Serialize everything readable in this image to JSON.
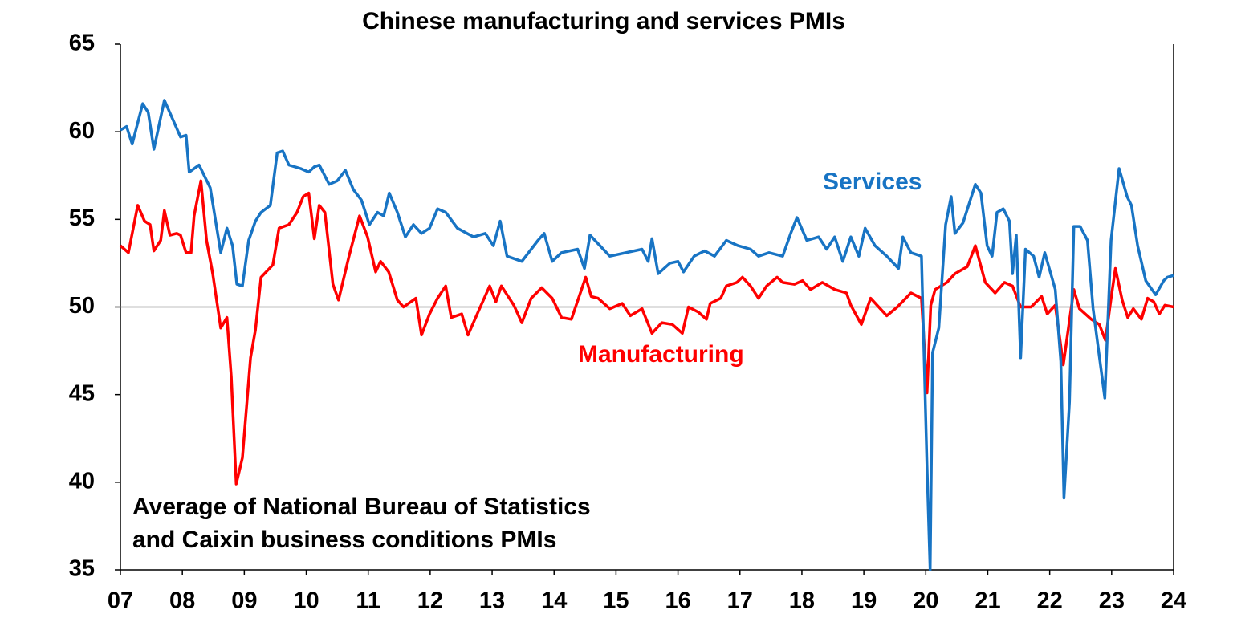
{
  "chart_data": {
    "type": "line",
    "title": "Chinese manufacturing and services PMIs",
    "annotation": [
      "Average of National Bureau of Statistics",
      "and Caixin business conditions PMIs"
    ],
    "xlim": [
      2007,
      2024
    ],
    "xticks": [
      {
        "value": 2007,
        "label": "07"
      },
      {
        "value": 2008,
        "label": "08"
      },
      {
        "value": 2009,
        "label": "09"
      },
      {
        "value": 2010,
        "label": "10"
      },
      {
        "value": 2011,
        "label": "11"
      },
      {
        "value": 2012,
        "label": "12"
      },
      {
        "value": 2013,
        "label": "13"
      },
      {
        "value": 2014,
        "label": "14"
      },
      {
        "value": 2015,
        "label": "15"
      },
      {
        "value": 2016,
        "label": "16"
      },
      {
        "value": 2017,
        "label": "17"
      },
      {
        "value": 2018,
        "label": "18"
      },
      {
        "value": 2019,
        "label": "19"
      },
      {
        "value": 2020,
        "label": "20"
      },
      {
        "value": 2021,
        "label": "21"
      },
      {
        "value": 2022,
        "label": "22"
      },
      {
        "value": 2023,
        "label": "23"
      },
      {
        "value": 2024,
        "label": "24"
      }
    ],
    "ylim": [
      35,
      65
    ],
    "yticks": [
      35,
      40,
      45,
      50,
      55,
      60,
      65
    ],
    "reference_line": 50,
    "series": [
      {
        "name": "Services",
        "color": "#1874c4",
        "x": [
          2007.0,
          2007.1,
          2007.19,
          2007.36,
          2007.45,
          2007.54,
          2007.71,
          2007.97,
          2008.06,
          2008.11,
          2008.27,
          2008.45,
          2008.62,
          2008.72,
          2008.81,
          2008.88,
          2008.97,
          2009.07,
          2009.18,
          2009.27,
          2009.42,
          2009.53,
          2009.62,
          2009.72,
          2009.91,
          2010.04,
          2010.13,
          2010.21,
          2010.37,
          2010.5,
          2010.63,
          2010.76,
          2010.89,
          2011.02,
          2011.15,
          2011.25,
          2011.34,
          2011.47,
          2011.6,
          2011.73,
          2011.86,
          2011.99,
          2012.12,
          2012.25,
          2012.44,
          2012.7,
          2012.89,
          2013.02,
          2013.13,
          2013.24,
          2013.48,
          2013.74,
          2013.84,
          2013.97,
          2014.12,
          2014.38,
          2014.49,
          2014.58,
          2014.9,
          2015.16,
          2015.42,
          2015.52,
          2015.58,
          2015.68,
          2015.87,
          2016.0,
          2016.09,
          2016.26,
          2016.43,
          2016.59,
          2016.78,
          2016.97,
          2017.17,
          2017.3,
          2017.47,
          2017.69,
          2017.82,
          2017.92,
          2018.08,
          2018.27,
          2018.4,
          2018.53,
          2018.66,
          2018.79,
          2018.92,
          2019.02,
          2019.18,
          2019.37,
          2019.56,
          2019.63,
          2019.76,
          2019.93,
          2020.02,
          2020.07,
          2020.11,
          2020.21,
          2020.32,
          2020.41,
          2020.47,
          2020.6,
          2020.8,
          2020.89,
          2020.99,
          2021.07,
          2021.15,
          2021.25,
          2021.35,
          2021.4,
          2021.46,
          2021.53,
          2021.61,
          2021.74,
          2021.83,
          2021.92,
          2022.09,
          2022.18,
          2022.23,
          2022.32,
          2022.39,
          2022.49,
          2022.61,
          2022.7,
          2022.89,
          2022.99,
          2023.12,
          2023.25,
          2023.32,
          2023.42,
          2023.55,
          2023.71,
          2023.84,
          2023.9,
          2024.0
        ],
        "values": [
          60.1,
          60.3,
          59.3,
          61.6,
          61.1,
          59.0,
          61.8,
          59.7,
          59.8,
          57.7,
          58.1,
          56.8,
          53.1,
          54.5,
          53.5,
          51.3,
          51.2,
          53.8,
          54.9,
          55.4,
          55.8,
          58.8,
          58.9,
          58.1,
          57.9,
          57.7,
          58.0,
          58.1,
          57.0,
          57.2,
          57.8,
          56.7,
          56.1,
          54.7,
          55.4,
          55.2,
          56.5,
          55.4,
          54.0,
          54.7,
          54.2,
          54.5,
          55.6,
          55.4,
          54.5,
          54.0,
          54.2,
          53.5,
          54.9,
          52.9,
          52.6,
          53.8,
          54.2,
          52.6,
          53.1,
          53.3,
          52.2,
          54.1,
          52.9,
          53.1,
          53.3,
          52.6,
          53.9,
          51.9,
          52.5,
          52.6,
          52.0,
          52.9,
          53.2,
          52.9,
          53.8,
          53.5,
          53.3,
          52.9,
          53.1,
          52.9,
          54.2,
          55.1,
          53.8,
          54.0,
          53.3,
          54.0,
          52.6,
          54.0,
          52.9,
          54.5,
          53.5,
          52.9,
          52.2,
          54.0,
          53.1,
          52.9,
          40.9,
          35.0,
          47.4,
          48.8,
          54.7,
          56.3,
          54.2,
          54.8,
          57.0,
          56.5,
          53.5,
          52.9,
          55.4,
          55.6,
          54.9,
          51.9,
          54.1,
          47.1,
          53.3,
          52.9,
          51.7,
          53.1,
          51.0,
          46.9,
          39.1,
          44.6,
          54.6,
          54.6,
          53.8,
          49.9,
          44.8,
          53.8,
          57.9,
          56.3,
          55.8,
          53.5,
          51.5,
          50.7,
          51.5,
          51.7,
          51.8
        ]
      },
      {
        "name": "Manufacturing",
        "color": "#ff0000",
        "x": [
          2007.0,
          2007.13,
          2007.28,
          2007.39,
          2007.48,
          2007.54,
          2007.65,
          2007.71,
          2007.8,
          2007.91,
          2007.97,
          2008.06,
          2008.14,
          2008.19,
          2008.3,
          2008.39,
          2008.49,
          2008.62,
          2008.72,
          2008.79,
          2008.87,
          2008.97,
          2009.1,
          2009.18,
          2009.27,
          2009.46,
          2009.56,
          2009.72,
          2009.85,
          2009.95,
          2010.04,
          2010.13,
          2010.21,
          2010.3,
          2010.43,
          2010.52,
          2010.69,
          2010.86,
          2010.99,
          2011.12,
          2011.2,
          2011.33,
          2011.47,
          2011.57,
          2011.77,
          2011.86,
          2011.99,
          2012.12,
          2012.25,
          2012.34,
          2012.51,
          2012.61,
          2012.76,
          2012.96,
          2013.06,
          2013.15,
          2013.35,
          2013.48,
          2013.63,
          2013.8,
          2013.97,
          2014.12,
          2014.28,
          2014.51,
          2014.6,
          2014.71,
          2014.9,
          2015.1,
          2015.23,
          2015.42,
          2015.58,
          2015.74,
          2015.91,
          2016.07,
          2016.17,
          2016.33,
          2016.46,
          2016.52,
          2016.69,
          2016.78,
          2016.95,
          2017.04,
          2017.17,
          2017.3,
          2017.43,
          2017.6,
          2017.69,
          2017.88,
          2018.01,
          2018.14,
          2018.33,
          2018.53,
          2018.72,
          2018.79,
          2018.96,
          2019.11,
          2019.37,
          2019.54,
          2019.76,
          2019.93,
          2020.02,
          2020.08,
          2020.15,
          2020.34,
          2020.47,
          2020.67,
          2020.8,
          2020.96,
          2021.12,
          2021.27,
          2021.4,
          2021.53,
          2021.7,
          2021.87,
          2021.96,
          2022.09,
          2022.22,
          2022.39,
          2022.48,
          2022.67,
          2022.8,
          2022.9,
          2022.99,
          2023.06,
          2023.17,
          2023.26,
          2023.35,
          2023.48,
          2023.58,
          2023.68,
          2023.77,
          2023.86,
          2024.0
        ],
        "values": [
          53.5,
          53.1,
          55.8,
          54.9,
          54.7,
          53.2,
          53.8,
          55.5,
          54.1,
          54.2,
          54.1,
          53.1,
          53.1,
          55.2,
          57.2,
          53.8,
          51.9,
          48.8,
          49.4,
          46.0,
          39.9,
          41.4,
          47.1,
          48.7,
          51.7,
          52.4,
          54.5,
          54.7,
          55.4,
          56.3,
          56.5,
          53.9,
          55.8,
          55.4,
          51.3,
          50.4,
          52.9,
          55.2,
          54.0,
          52.0,
          52.6,
          52.0,
          50.4,
          50.0,
          50.5,
          48.4,
          49.6,
          50.5,
          51.2,
          49.4,
          49.6,
          48.4,
          49.6,
          51.2,
          50.3,
          51.2,
          50.1,
          49.1,
          50.5,
          51.1,
          50.5,
          49.4,
          49.3,
          51.7,
          50.6,
          50.5,
          49.9,
          50.2,
          49.5,
          49.9,
          48.5,
          49.1,
          49.0,
          48.5,
          50.0,
          49.7,
          49.3,
          50.2,
          50.5,
          51.2,
          51.4,
          51.7,
          51.2,
          50.5,
          51.2,
          51.7,
          51.4,
          51.3,
          51.5,
          51.0,
          51.4,
          51.0,
          50.8,
          50.1,
          49.0,
          50.5,
          49.5,
          50.0,
          50.8,
          50.5,
          45.1,
          50.1,
          51.0,
          51.4,
          51.9,
          52.3,
          53.5,
          51.4,
          50.8,
          51.4,
          51.2,
          50.0,
          50.0,
          50.6,
          49.6,
          50.1,
          46.7,
          51.0,
          49.9,
          49.3,
          49.0,
          48.1,
          50.5,
          52.2,
          50.4,
          49.4,
          49.9,
          49.3,
          50.5,
          50.3,
          49.6,
          50.1,
          50.0
        ]
      }
    ]
  }
}
